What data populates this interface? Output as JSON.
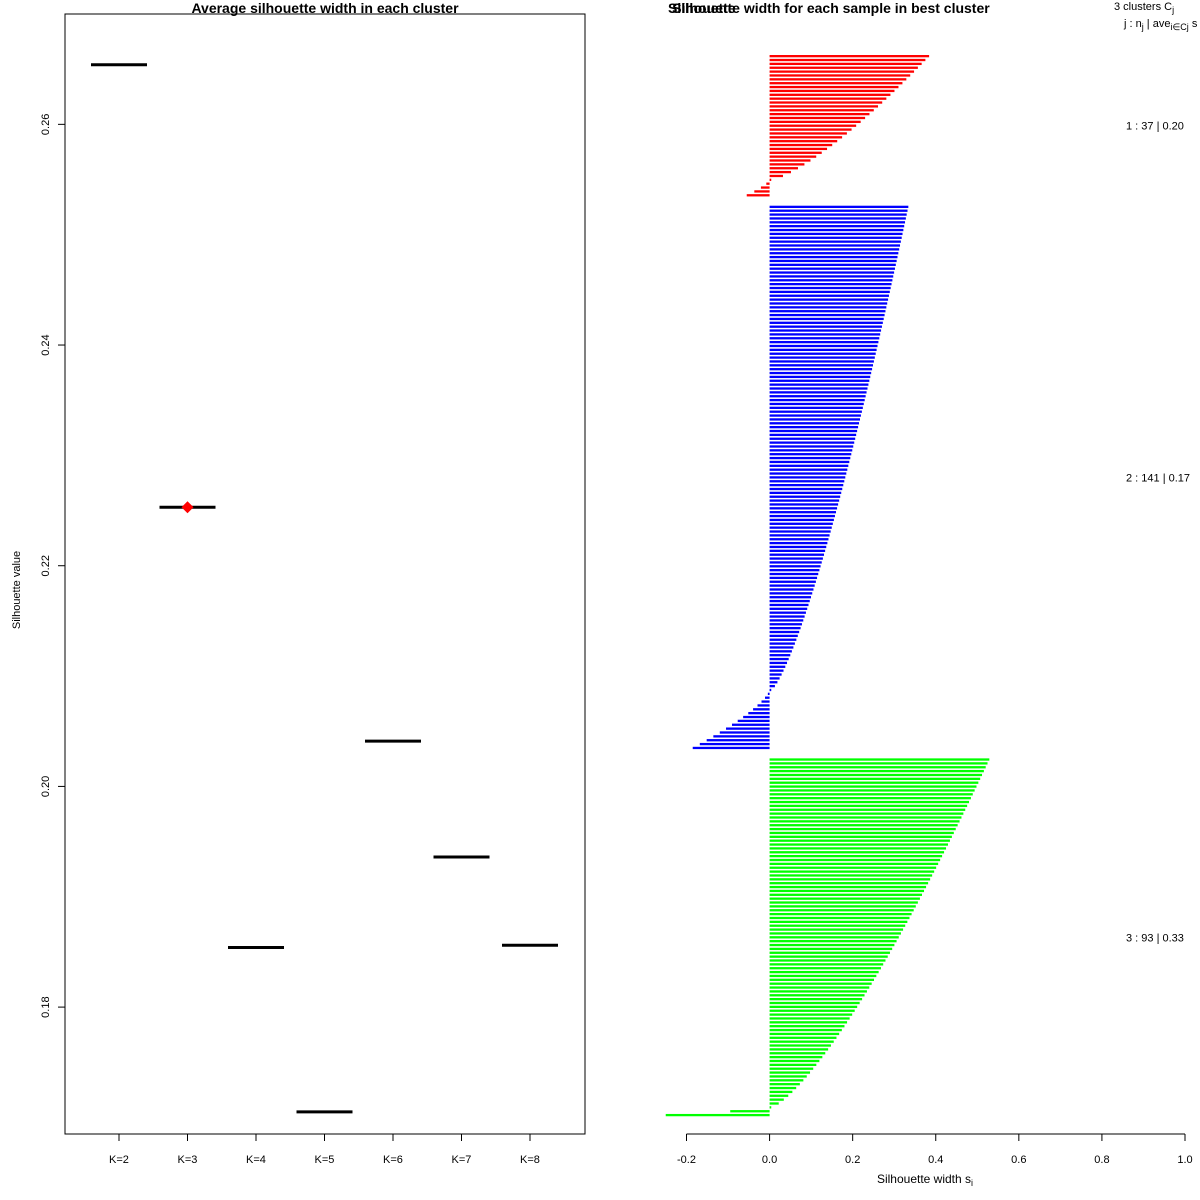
{
  "chart_data": [
    {
      "type": "scatter",
      "title": "Average silhouette width in each cluster",
      "xlabel": "",
      "ylabel": "Silhouette value",
      "categories": [
        "K=2",
        "K=3",
        "K=4",
        "K=5",
        "K=6",
        "K=7",
        "K=8"
      ],
      "values": [
        0.2654,
        0.2253,
        0.1854,
        0.1705,
        0.2041,
        0.1936,
        0.1856
      ],
      "best": "K=3",
      "best_marker_color": "#ff0000",
      "ylim": [
        0.1685,
        0.27
      ],
      "yticks": [
        0.18,
        0.2,
        0.22,
        0.24,
        0.26
      ],
      "ytick_labels": [
        "0.18",
        "0.20",
        "0.22",
        "0.24",
        "0.26"
      ]
    },
    {
      "type": "bar",
      "orientation": "horizontal",
      "title": "Silhouette width for each sample in best cluster",
      "overlap_title": "Silhouette",
      "xlabel": "Silhouette width s",
      "xlabel_subscript": "i",
      "xlim": [
        -0.2,
        1.0
      ],
      "xticks": [
        -0.2,
        0.0,
        0.2,
        0.4,
        0.6,
        0.8,
        1.0
      ],
      "xtick_labels": [
        "-0.2",
        "0.0",
        "0.2",
        "0.4",
        "0.6",
        "0.8",
        "1.0"
      ],
      "legend_header": {
        "line1": "3  clusters  C",
        "line1_sub": "j",
        "line2": "j :  n",
        "line2_sub": "j",
        "line2_mid": " | ave",
        "line2_sub2": "i∈Cj",
        "line2_tail": "  s"
      },
      "clusters": [
        {
          "label": "1 :  37  |  0.20",
          "n": 37,
          "color": "#ff0000",
          "max": 0.38,
          "min": -0.055,
          "negatives": 4
        },
        {
          "label": "2 :  141  |  0.17",
          "n": 141,
          "color": "#0000ff",
          "max": 0.33,
          "min": -0.185,
          "negatives": 15
        },
        {
          "label": "3 :  93  |  0.33",
          "n": 93,
          "color": "#00ff00",
          "max": 0.525,
          "min": -0.25,
          "negatives": 2
        }
      ]
    }
  ]
}
